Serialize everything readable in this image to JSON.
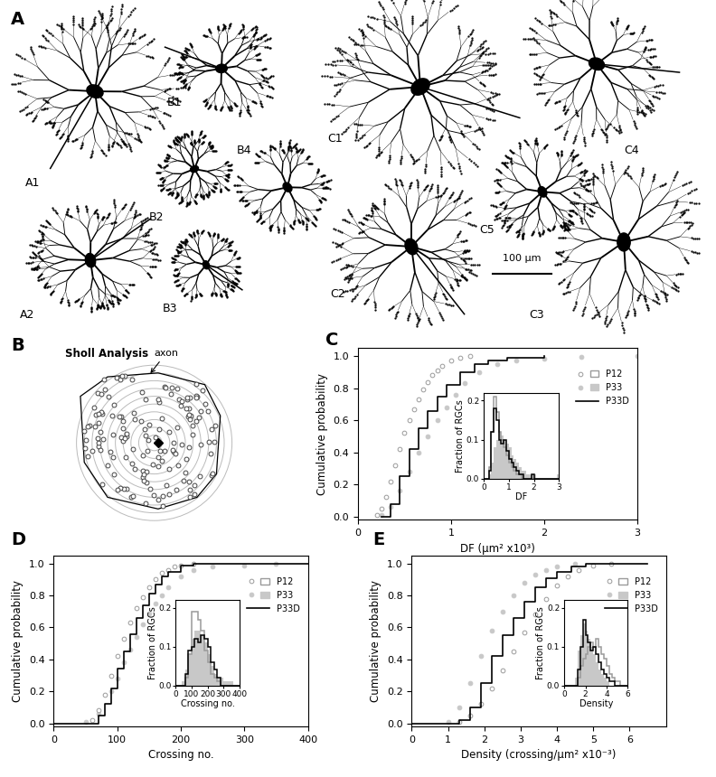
{
  "panel_labels": [
    "A",
    "B",
    "C",
    "D",
    "E"
  ],
  "panel_A": {
    "cell_labels": [
      "A1",
      "B1",
      "C1",
      "C4",
      "B2",
      "B4",
      "C5",
      "A2",
      "B3",
      "C2",
      "C3"
    ],
    "scale_bar": "100 μm"
  },
  "panel_B": {
    "title": "Sholl Analysis",
    "annotation": "axon"
  },
  "chart_data": [
    {
      "type": "line",
      "xlabel": "DF (μm² x10³)",
      "ylabel": "Cumulative probability",
      "xlim": [
        0,
        3
      ],
      "ylim": [
        -0.02,
        1.05
      ],
      "xticks": [
        0,
        1,
        2,
        3
      ],
      "yticks": [
        {
          "value": 0,
          "label": "0.0"
        },
        0.2,
        0.4,
        0.6,
        0.8,
        {
          "value": 1,
          "label": "1.0"
        }
      ],
      "legend": "upper right",
      "series": [
        {
          "name": "P12",
          "type": "scatter",
          "marker": "open_circle",
          "color": "#9a9a9a",
          "x": [
            0.2,
            0.25,
            0.3,
            0.35,
            0.4,
            0.45,
            0.5,
            0.55,
            0.6,
            0.65,
            0.7,
            0.75,
            0.8,
            0.85,
            0.9,
            1.0,
            1.1,
            1.2
          ],
          "values": [
            0.01,
            0.05,
            0.12,
            0.22,
            0.32,
            0.42,
            0.52,
            0.6,
            0.67,
            0.73,
            0.79,
            0.84,
            0.88,
            0.91,
            0.94,
            0.97,
            0.99,
            1.0
          ]
        },
        {
          "name": "P33",
          "type": "scatter",
          "marker": "circle",
          "color": "#c8c8c8",
          "x": [
            0.25,
            0.35,
            0.45,
            0.55,
            0.65,
            0.75,
            0.85,
            0.95,
            1.05,
            1.15,
            1.3,
            1.5,
            1.7,
            2.0,
            2.4,
            3.0
          ],
          "values": [
            0.01,
            0.06,
            0.16,
            0.28,
            0.4,
            0.5,
            0.6,
            0.68,
            0.76,
            0.83,
            0.9,
            0.95,
            0.97,
            0.985,
            0.995,
            1.0
          ]
        },
        {
          "name": "P33D",
          "type": "line",
          "line_style": "step",
          "color": "#000000",
          "x": [
            0.25,
            0.35,
            0.45,
            0.55,
            0.65,
            0.75,
            0.85,
            0.95,
            1.1,
            1.25,
            1.4,
            1.6,
            2.0
          ],
          "values": [
            0.0,
            0.08,
            0.25,
            0.42,
            0.55,
            0.66,
            0.75,
            0.82,
            0.9,
            0.95,
            0.97,
            0.99,
            1.0
          ]
        }
      ],
      "inset": {
        "type": "histogram",
        "xlabel": "DF",
        "ylabel": "Fraction of RGCs",
        "xlim": [
          0,
          3
        ],
        "ylim": [
          0,
          0.22
        ],
        "xticks": [
          0,
          1,
          2,
          3
        ],
        "yticks": [
          {
            "value": 0,
            "label": "0.0"
          },
          0.1,
          0.2
        ],
        "bins": [
          0,
          0.1,
          0.2,
          0.3,
          0.4,
          0.5,
          0.6,
          0.7,
          0.8,
          0.9,
          1.0,
          1.1,
          1.2,
          1.3,
          1.4,
          1.5,
          1.6,
          1.7,
          1.8,
          1.9,
          2.0,
          2.1,
          2.2,
          2.3,
          2.4,
          2.5,
          2.6,
          2.7,
          2.8,
          2.9,
          3.0
        ],
        "series": [
          {
            "name": "P33",
            "type": "bar",
            "color": "#c8c8c8",
            "values": [
              0,
              0,
              0.01,
              0.04,
              0.08,
              0.1,
              0.12,
              0.11,
              0.1,
              0.09,
              0.08,
              0.06,
              0.05,
              0.04,
              0.03,
              0.02,
              0.02,
              0.01,
              0.01,
              0.01,
              0.01,
              0,
              0,
              0,
              0,
              0,
              0,
              0,
              0,
              0.01
            ]
          },
          {
            "name": "P12",
            "type": "step",
            "color": "#9a9a9a",
            "values": [
              0,
              0,
              0.03,
              0.12,
              0.21,
              0.17,
              0.12,
              0.1,
              0.08,
              0.06,
              0.04,
              0.03,
              0.02,
              0.01,
              0.01,
              0,
              0,
              0,
              0,
              0,
              0,
              0,
              0,
              0,
              0,
              0,
              0,
              0,
              0,
              0
            ]
          },
          {
            "name": "P33D",
            "type": "step",
            "color": "#000000",
            "values": [
              0,
              0,
              0.02,
              0.12,
              0.18,
              0.15,
              0.1,
              0.09,
              0.1,
              0.07,
              0.05,
              0.04,
              0.03,
              0.02,
              0.01,
              0.01,
              0,
              0,
              0,
              0.01,
              0,
              0,
              0,
              0,
              0,
              0,
              0,
              0,
              0,
              0
            ]
          }
        ]
      }
    },
    {
      "type": "line",
      "xlabel": "Crossing no.",
      "ylabel": "Cumulative probability",
      "xlim": [
        0,
        400
      ],
      "ylim": [
        -0.02,
        1.05
      ],
      "xticks": [
        0,
        100,
        200,
        300,
        400
      ],
      "yticks": [
        {
          "value": 0,
          "label": "0.0"
        },
        0.2,
        0.4,
        0.6,
        0.8,
        {
          "value": 1,
          "label": "1.0"
        }
      ],
      "legend": "upper right",
      "series": [
        {
          "name": "P12",
          "type": "scatter",
          "marker": "open_circle",
          "color": "#9a9a9a",
          "x": [
            60,
            70,
            80,
            90,
            100,
            110,
            120,
            130,
            140,
            150,
            160,
            170,
            180,
            190,
            200,
            220
          ],
          "values": [
            0.02,
            0.08,
            0.18,
            0.3,
            0.42,
            0.53,
            0.63,
            0.72,
            0.79,
            0.85,
            0.9,
            0.94,
            0.96,
            0.98,
            0.99,
            1.0
          ]
        },
        {
          "name": "P33",
          "type": "scatter",
          "marker": "circle",
          "color": "#c8c8c8",
          "x": [
            50,
            70,
            90,
            100,
            110,
            120,
            130,
            140,
            150,
            160,
            170,
            180,
            200,
            220,
            250,
            300,
            350
          ],
          "values": [
            0.01,
            0.06,
            0.2,
            0.28,
            0.38,
            0.46,
            0.54,
            0.62,
            0.69,
            0.75,
            0.8,
            0.85,
            0.92,
            0.96,
            0.98,
            0.99,
            1.0
          ]
        },
        {
          "name": "P33D",
          "type": "line",
          "line_style": "step",
          "color": "#000000",
          "x": [
            0,
            55,
            70,
            80,
            90,
            100,
            110,
            120,
            130,
            140,
            150,
            160,
            170,
            180,
            200,
            220,
            260,
            400
          ],
          "values": [
            0,
            0,
            0.05,
            0.12,
            0.22,
            0.34,
            0.45,
            0.56,
            0.66,
            0.74,
            0.81,
            0.87,
            0.92,
            0.95,
            0.99,
            1.0,
            1.0,
            1.0
          ]
        }
      ],
      "inset": {
        "type": "histogram",
        "xlabel": "Crossing no.",
        "ylabel": "Fraction of RGCs",
        "xlim": [
          0,
          400
        ],
        "ylim": [
          0,
          0.22
        ],
        "xticks": [
          0,
          100,
          200,
          300,
          400
        ],
        "yticks": [
          {
            "value": 0,
            "label": "0.0"
          },
          0.1,
          0.2
        ],
        "bins": [
          0,
          20,
          40,
          60,
          80,
          100,
          120,
          140,
          160,
          180,
          200,
          220,
          240,
          260,
          280,
          300,
          320,
          340,
          360,
          380,
          400
        ],
        "series": [
          {
            "name": "P33",
            "type": "bar",
            "color": "#c8c8c8",
            "values": [
              0,
              0,
              0.01,
              0.04,
              0.08,
              0.12,
              0.14,
              0.14,
              0.13,
              0.11,
              0.08,
              0.05,
              0.03,
              0.02,
              0.02,
              0.01,
              0.01,
              0.01,
              0,
              0
            ]
          },
          {
            "name": "P12",
            "type": "step",
            "color": "#9a9a9a",
            "values": [
              0,
              0,
              0,
              0.02,
              0.08,
              0.19,
              0.19,
              0.17,
              0.14,
              0.09,
              0.06,
              0.03,
              0.02,
              0.01,
              0,
              0,
              0,
              0,
              0,
              0
            ]
          },
          {
            "name": "P33D",
            "type": "step",
            "color": "#000000",
            "values": [
              0,
              0,
              0,
              0.03,
              0.09,
              0.1,
              0.12,
              0.11,
              0.13,
              0.12,
              0.1,
              0.06,
              0.04,
              0.02,
              0,
              0,
              0,
              0,
              0,
              0
            ]
          }
        ]
      }
    },
    {
      "type": "line",
      "xlabel": "Density (crossing/μm² x10⁻³)",
      "ylabel": "Cumulative probability",
      "xlim": [
        0,
        7
      ],
      "ylim": [
        -0.02,
        1.05
      ],
      "xticks": [
        0,
        1,
        2,
        3,
        4,
        5,
        6
      ],
      "yticks": [
        {
          "value": 0,
          "label": "0.0"
        },
        0.2,
        0.4,
        0.6,
        0.8,
        {
          "value": 1,
          "label": "1.0"
        }
      ],
      "legend": "upper right",
      "series": [
        {
          "name": "P12",
          "type": "scatter",
          "marker": "open_circle",
          "color": "#9a9a9a",
          "x": [
            1.3,
            1.6,
            1.9,
            2.2,
            2.5,
            2.8,
            3.1,
            3.4,
            3.7,
            4.0,
            4.3,
            4.6,
            5.0,
            5.5
          ],
          "values": [
            0.01,
            0.05,
            0.12,
            0.22,
            0.33,
            0.45,
            0.57,
            0.68,
            0.78,
            0.86,
            0.92,
            0.96,
            0.99,
            1.0
          ]
        },
        {
          "name": "P33",
          "type": "scatter",
          "marker": "circle",
          "color": "#c8c8c8",
          "x": [
            1.0,
            1.3,
            1.6,
            1.9,
            2.2,
            2.5,
            2.8,
            3.1,
            3.4,
            3.7,
            4.0,
            4.5
          ],
          "values": [
            0.01,
            0.1,
            0.25,
            0.42,
            0.58,
            0.7,
            0.8,
            0.88,
            0.93,
            0.96,
            0.98,
            1.0
          ]
        },
        {
          "name": "P33D",
          "type": "line",
          "line_style": "step",
          "color": "#000000",
          "x": [
            0,
            1.3,
            1.6,
            1.9,
            2.2,
            2.5,
            2.8,
            3.1,
            3.4,
            3.7,
            4.0,
            4.4,
            4.8,
            6.5
          ],
          "values": [
            0,
            0.02,
            0.1,
            0.25,
            0.42,
            0.55,
            0.66,
            0.76,
            0.85,
            0.91,
            0.95,
            0.98,
            1.0,
            1.0
          ]
        }
      ],
      "inset": {
        "type": "histogram",
        "xlabel": "Density",
        "ylabel": "Fraction of RGCs",
        "xlim": [
          0,
          6
        ],
        "ylim": [
          0,
          0.22
        ],
        "xticks": [
          0,
          2,
          4,
          6
        ],
        "yticks": [
          {
            "value": 0,
            "label": "0.0"
          },
          0.1,
          0.2
        ],
        "bins": [
          0,
          0.25,
          0.5,
          0.75,
          1.0,
          1.25,
          1.5,
          1.75,
          2.0,
          2.25,
          2.5,
          2.75,
          3.0,
          3.25,
          3.5,
          3.75,
          4.0,
          4.25,
          4.5,
          4.75,
          5.0,
          5.25,
          5.5,
          5.75,
          6.0
        ],
        "series": [
          {
            "name": "P33",
            "type": "bar",
            "color": "#c8c8c8",
            "values": [
              0,
              0,
              0,
              0,
              0.02,
              0.09,
              0.13,
              0.16,
              0.14,
              0.12,
              0.1,
              0.08,
              0.06,
              0.04,
              0.03,
              0.02,
              0.01,
              0,
              0,
              0,
              0,
              0,
              0,
              0
            ]
          },
          {
            "name": "P12",
            "type": "step",
            "color": "#9a9a9a",
            "values": [
              0,
              0,
              0,
              0,
              0,
              0.02,
              0.05,
              0.07,
              0.08,
              0.1,
              0.11,
              0.1,
              0.12,
              0.1,
              0.08,
              0.07,
              0.05,
              0.03,
              0.02,
              0.01,
              0.01,
              0,
              0,
              0
            ]
          },
          {
            "name": "P33D",
            "type": "step",
            "color": "#000000",
            "values": [
              0,
              0,
              0,
              0,
              0,
              0.04,
              0.1,
              0.17,
              0.13,
              0.11,
              0.09,
              0.1,
              0.08,
              0.06,
              0.04,
              0.03,
              0.02,
              0.01,
              0.01,
              0,
              0,
              0,
              0,
              0
            ]
          }
        ]
      }
    }
  ]
}
